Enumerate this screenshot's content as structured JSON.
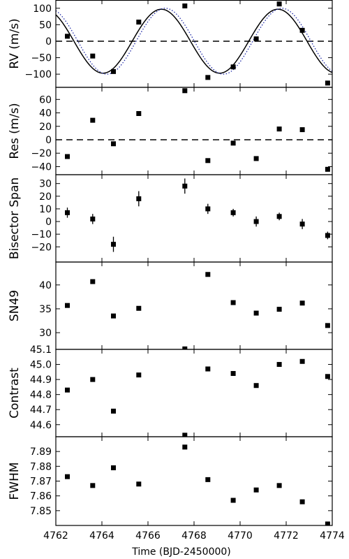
{
  "chart_data": {
    "type": "scatter",
    "xlabel": "Time (BJD-2450000)",
    "xlim": [
      4762,
      4774
    ],
    "xticks": [
      4762,
      4764,
      4766,
      4768,
      4770,
      4772,
      4774
    ],
    "xtick_labels": [
      "4762",
      "4764",
      "4766",
      "4768",
      "4770",
      "4772",
      "4774"
    ],
    "x": [
      4762.5,
      4763.6,
      4764.5,
      4765.6,
      4767.6,
      4768.6,
      4769.7,
      4770.7,
      4771.7,
      4772.7,
      4773.8
    ],
    "panels": [
      {
        "ylabel": "RV (m/s)",
        "ylim": [
          -140,
          125
        ],
        "yticks": [
          -100,
          -50,
          0,
          50,
          100
        ],
        "ytick_labels": [
          "−100",
          "−50",
          "0",
          "50",
          "100"
        ],
        "zero_line": true,
        "y": [
          15,
          -45,
          -92,
          58,
          107,
          -110,
          -78,
          7,
          113,
          33,
          -127
        ],
        "model": {
          "amplitude": 97,
          "period": 5.06,
          "peak_x": 4766.58,
          "color": "#000000",
          "style": "solid"
        },
        "model2": {
          "amplitude": 100,
          "period": 5.06,
          "peak_x": 4766.75,
          "color": "#1f2aa8",
          "style": "dotted"
        }
      },
      {
        "ylabel": "Res (m/s)",
        "ylim": [
          -52,
          78
        ],
        "yticks": [
          -40,
          -20,
          0,
          20,
          40,
          60
        ],
        "ytick_labels": [
          "−40",
          "−20",
          "0",
          "20",
          "40",
          "60"
        ],
        "zero_line": true,
        "y": [
          -25,
          29,
          -6,
          39,
          73,
          -31,
          -5,
          -28,
          16,
          15,
          -44
        ]
      },
      {
        "ylabel": "Bisector Span",
        "ylim": [
          -32,
          37
        ],
        "yticks": [
          -20,
          -10,
          0,
          10,
          20,
          30
        ],
        "ytick_labels": [
          "−20",
          "−10",
          "0",
          "10",
          "20",
          "30"
        ],
        "y": [
          7,
          2,
          -18,
          18,
          28,
          10,
          7,
          0,
          4,
          -2,
          -11
        ],
        "yerr": [
          4,
          4,
          6,
          6,
          6,
          4,
          3,
          4,
          3,
          4,
          3
        ]
      },
      {
        "ylabel": "SN49",
        "ylim": [
          26.5,
          44.8
        ],
        "yticks": [
          30,
          35,
          40
        ],
        "ytick_labels": [
          "30",
          "35",
          "40"
        ],
        "y": [
          35.7,
          40.7,
          33.5,
          35.1,
          26.6,
          42.2,
          36.3,
          34.1,
          34.9,
          36.2,
          31.5
        ]
      },
      {
        "ylabel": "Contrast",
        "ylim": [
          44.52,
          45.1
        ],
        "yticks": [
          44.6,
          44.7,
          44.8,
          44.9,
          45.0,
          45.1
        ],
        "ytick_labels": [
          "44.6",
          "44.7",
          "44.8",
          "44.9",
          "45.0",
          "45.1"
        ],
        "y": [
          44.83,
          44.9,
          44.69,
          44.93,
          44.53,
          44.97,
          44.94,
          44.86,
          45.0,
          45.02,
          44.92
        ]
      },
      {
        "ylabel": "FWHM",
        "ylim": [
          7.84,
          7.9
        ],
        "yticks": [
          7.85,
          7.86,
          7.87,
          7.88,
          7.89
        ],
        "ytick_labels": [
          "7.85",
          "7.86",
          "7.87",
          "7.88",
          "7.89"
        ],
        "y": [
          7.873,
          7.867,
          7.879,
          7.868,
          7.893,
          7.871,
          7.857,
          7.864,
          7.867,
          7.856,
          7.841
        ]
      }
    ]
  }
}
